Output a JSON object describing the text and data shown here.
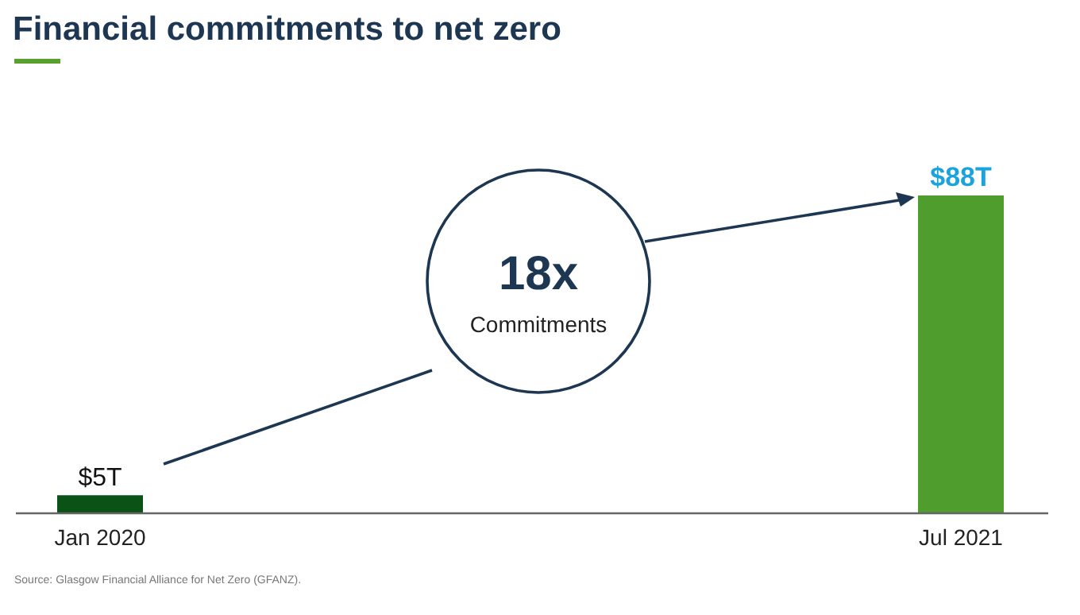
{
  "chart_data": {
    "type": "bar",
    "title": "Financial commitments to net zero",
    "categories": [
      "Jan 2020",
      "Jul 2021"
    ],
    "values": [
      5,
      88
    ],
    "colors": [
      "#0b5217",
      "#4e9d2d"
    ],
    "data_labels": true,
    "value_labels": [
      "$5T",
      "$88T"
    ],
    "annotations": [
      "18x",
      "Commitments",
      "Source: Glasgow Financial Alliance for Net Zero (GFANZ)."
    ]
  }
}
